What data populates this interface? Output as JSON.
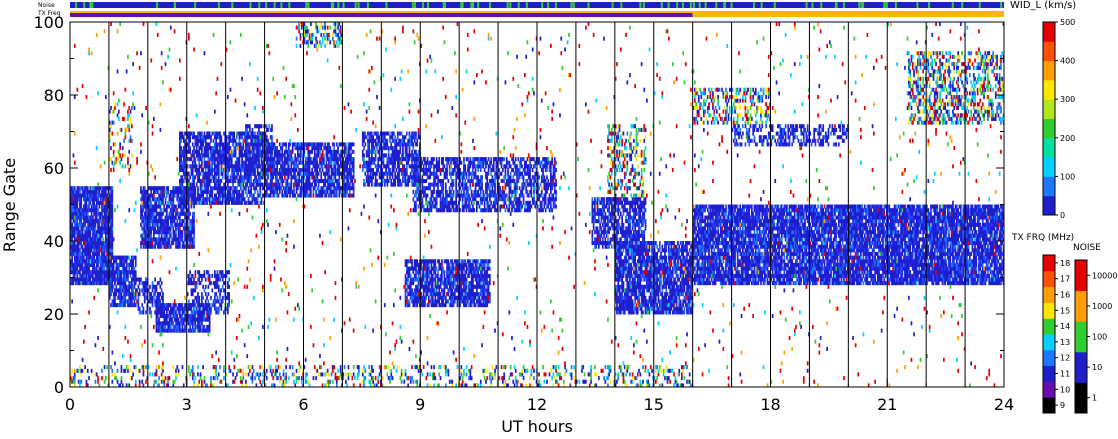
{
  "status_bars": {
    "noise_label": "Noise",
    "freq_label": "TX Freq",
    "noise_color": "#1e1ecc",
    "freq_color_early": "#6a0dad",
    "freq_color_late": "#ffb400",
    "freq_change_hour": 16
  },
  "chart_data": {
    "type": "heatmap",
    "xlabel": "UT hours",
    "ylabel": "Range Gate",
    "xlim": [
      0,
      24
    ],
    "ylim": [
      0,
      100
    ],
    "x_ticks": [
      "0",
      "3",
      "6",
      "9",
      "12",
      "15",
      "18",
      "21",
      "24"
    ],
    "x_tick_values": [
      0,
      3,
      6,
      9,
      12,
      15,
      18,
      21,
      24
    ],
    "y_ticks": [
      "0",
      "20",
      "40",
      "60",
      "80",
      "100"
    ],
    "y_tick_values": [
      0,
      20,
      40,
      60,
      80,
      100
    ],
    "hour_gridlines": true,
    "colorbars": [
      {
        "label": "WID_L (km/s)",
        "ticks": [
          "0",
          "100",
          "200",
          "300",
          "400",
          "500"
        ],
        "colors": [
          "#1e1ecc",
          "#1e78ff",
          "#00d2ff",
          "#00e0a0",
          "#32cd32",
          "#b4e61e",
          "#ffe600",
          "#ffa000",
          "#ff5000",
          "#e60000"
        ]
      },
      {
        "label": "TX FRQ (MHz)",
        "ticks": [
          "9",
          "10",
          "11",
          "12",
          "13",
          "14",
          "15",
          "16",
          "17",
          "18"
        ],
        "colors": [
          "#000000",
          "#6a0dad",
          "#1e1ecc",
          "#1e78ff",
          "#00d2ff",
          "#32cd32",
          "#ffe600",
          "#ffa000",
          "#ff5000",
          "#e60000"
        ]
      },
      {
        "label": "NOISE",
        "ticks": [
          "1",
          "10",
          "100",
          "1000",
          "10000"
        ],
        "colors": [
          "#000000",
          "#1e1ecc",
          "#32cd32",
          "#ffa000",
          "#e60000"
        ]
      }
    ],
    "echo_regions": [
      {
        "t0": 0.0,
        "t1": 1.1,
        "g0": 28,
        "g1": 55,
        "density": 0.9,
        "color": "dense"
      },
      {
        "t0": 1.0,
        "t1": 1.7,
        "g0": 22,
        "g1": 36,
        "density": 0.8,
        "color": "dense"
      },
      {
        "t0": 1.0,
        "t1": 1.6,
        "g0": 60,
        "g1": 78,
        "density": 0.25,
        "color": "mixed"
      },
      {
        "t0": 1.8,
        "t1": 3.2,
        "g0": 38,
        "g1": 55,
        "density": 0.8,
        "color": "dense"
      },
      {
        "t0": 1.7,
        "t1": 2.4,
        "g0": 20,
        "g1": 30,
        "density": 0.45,
        "color": "dense"
      },
      {
        "t0": 2.2,
        "t1": 3.6,
        "g0": 15,
        "g1": 23,
        "density": 0.85,
        "color": "dense"
      },
      {
        "t0": 3.0,
        "t1": 4.1,
        "g0": 20,
        "g1": 32,
        "density": 0.45,
        "color": "dense"
      },
      {
        "t0": 2.8,
        "t1": 5.0,
        "g0": 50,
        "g1": 70,
        "density": 0.75,
        "color": "dense"
      },
      {
        "t0": 4.5,
        "t1": 5.2,
        "g0": 58,
        "g1": 72,
        "density": 0.6,
        "color": "dense"
      },
      {
        "t0": 5.0,
        "t1": 7.3,
        "g0": 52,
        "g1": 67,
        "density": 0.75,
        "color": "dense"
      },
      {
        "t0": 5.8,
        "t1": 7.0,
        "g0": 93,
        "g1": 100,
        "density": 0.45,
        "color": "mixed"
      },
      {
        "t0": 7.5,
        "t1": 9.0,
        "g0": 55,
        "g1": 70,
        "density": 0.7,
        "color": "dense"
      },
      {
        "t0": 8.8,
        "t1": 11.0,
        "g0": 48,
        "g1": 63,
        "density": 0.65,
        "color": "dense"
      },
      {
        "t0": 8.6,
        "t1": 10.8,
        "g0": 22,
        "g1": 35,
        "density": 0.8,
        "color": "dense"
      },
      {
        "t0": 11.0,
        "t1": 12.5,
        "g0": 48,
        "g1": 63,
        "density": 0.6,
        "color": "dense"
      },
      {
        "t0": 13.4,
        "t1": 14.8,
        "g0": 38,
        "g1": 52,
        "density": 0.7,
        "color": "dense"
      },
      {
        "t0": 14.0,
        "t1": 16.0,
        "g0": 20,
        "g1": 40,
        "density": 0.8,
        "color": "dense"
      },
      {
        "t0": 13.8,
        "t1": 14.8,
        "g0": 52,
        "g1": 72,
        "density": 0.35,
        "color": "mixed"
      },
      {
        "t0": 16.0,
        "t1": 24.0,
        "g0": 28,
        "g1": 50,
        "density": 0.85,
        "color": "dense"
      },
      {
        "t0": 16.0,
        "t1": 18.0,
        "g0": 72,
        "g1": 82,
        "density": 0.4,
        "color": "mixed"
      },
      {
        "t0": 17.0,
        "t1": 20.0,
        "g0": 66,
        "g1": 72,
        "density": 0.45,
        "color": "dense"
      },
      {
        "t0": 21.5,
        "t1": 24.0,
        "g0": 72,
        "g1": 92,
        "density": 0.45,
        "color": "mixed"
      },
      {
        "t0": 0.0,
        "t1": 16.0,
        "g0": 0,
        "g1": 6,
        "density": 0.25,
        "color": "mixed"
      },
      {
        "t0": 0.0,
        "t1": 24.0,
        "g0": 0,
        "g1": 100,
        "density": 0.018,
        "color": "sparse"
      }
    ]
  }
}
